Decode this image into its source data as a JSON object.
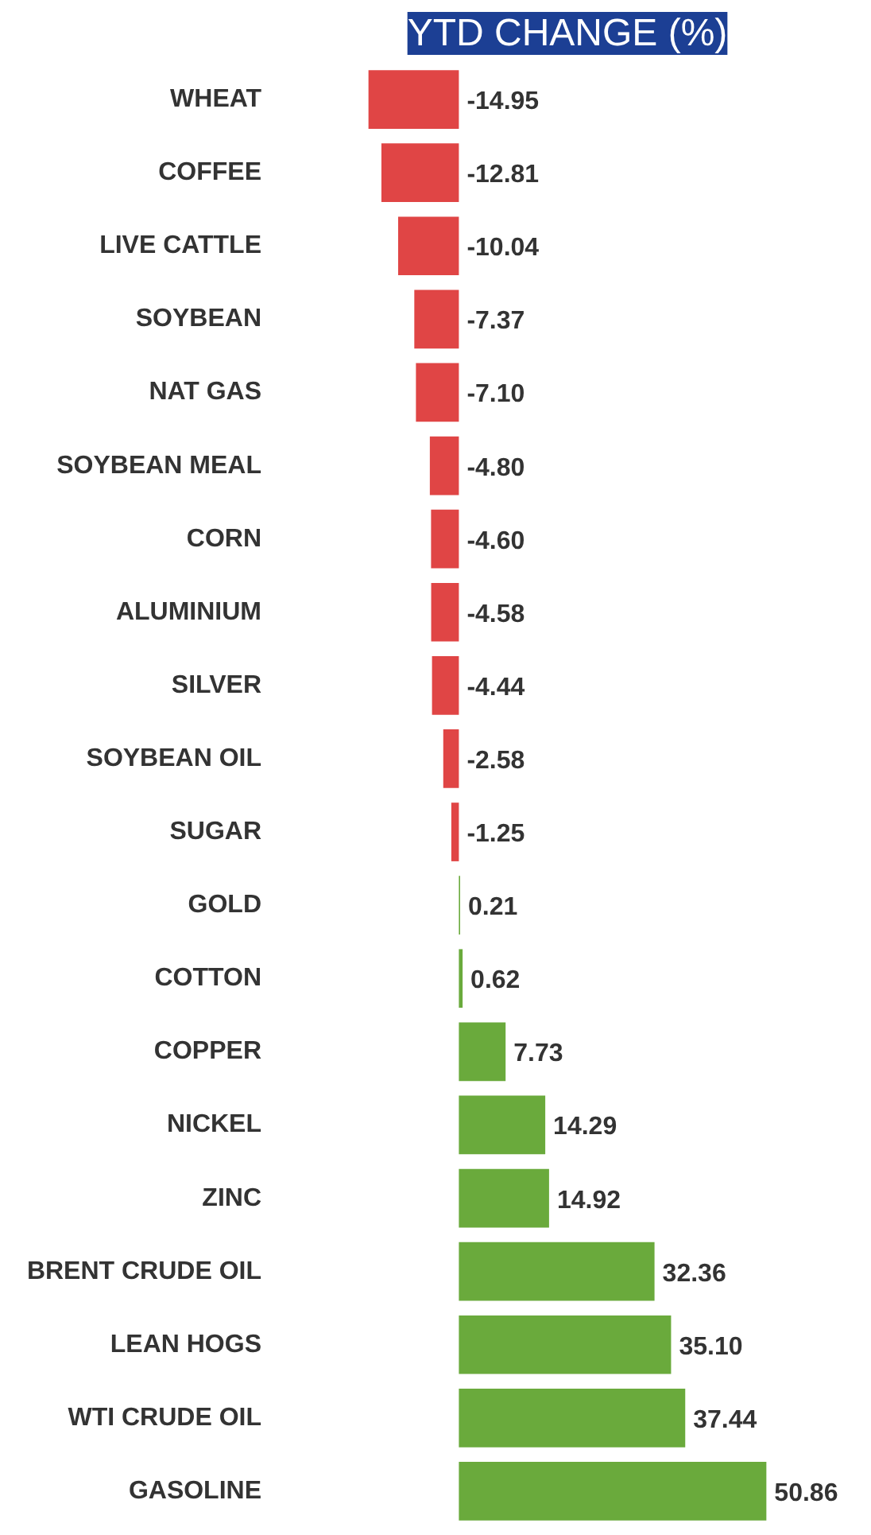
{
  "chart_data": {
    "type": "bar",
    "orientation": "horizontal",
    "title": "YTD CHANGE (%)",
    "categories": [
      "WHEAT",
      "COFFEE",
      "LIVE CATTLE",
      "SOYBEAN",
      "NAT GAS",
      "SOYBEAN MEAL",
      "CORN",
      "ALUMINIUM",
      "SILVER",
      "SOYBEAN OIL",
      "SUGAR",
      "GOLD",
      "COTTON",
      "COPPER",
      "NICKEL",
      "ZINC",
      "BRENT CRUDE OIL",
      "LEAN HOGS",
      "WTI CRUDE OIL",
      "GASOLINE"
    ],
    "values": [
      -14.95,
      -12.81,
      -10.04,
      -7.37,
      -7.1,
      -4.8,
      -4.6,
      -4.58,
      -4.44,
      -2.58,
      -1.25,
      0.21,
      0.62,
      7.73,
      14.29,
      14.92,
      32.36,
      35.1,
      37.44,
      50.86
    ],
    "value_labels": [
      "-14.95",
      "-12.81",
      "-10.04",
      "-7.37",
      "-7.10",
      "-4.80",
      "-4.60",
      "-4.58",
      "-4.44",
      "-2.58",
      "-1.25",
      "0.21",
      "0.62",
      "7.73",
      "14.29",
      "14.92",
      "32.36",
      "35.10",
      "37.44",
      "50.86"
    ],
    "colors": [
      "#e04545",
      "#e04545",
      "#e04545",
      "#e04545",
      "#e04545",
      "#e04545",
      "#e04545",
      "#e04545",
      "#e04545",
      "#e04545",
      "#e04545",
      "#6aaa3c",
      "#6aaa3c",
      "#6aaa3c",
      "#6aaa3c",
      "#6aaa3c",
      "#6aaa3c",
      "#6aaa3c",
      "#6aaa3c",
      "#6aaa3c"
    ],
    "tick_labels": "y",
    "grid": false
  }
}
